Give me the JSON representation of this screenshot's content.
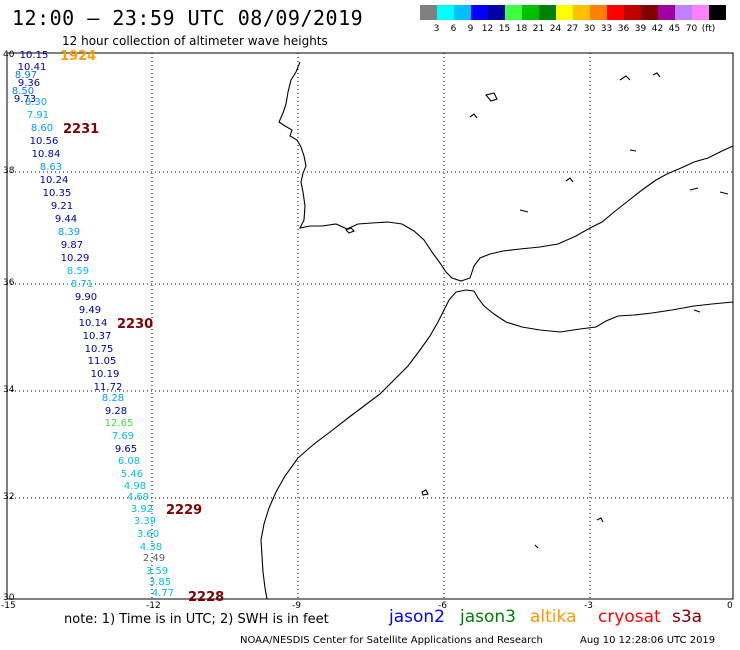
{
  "header": {
    "title": "12:00 – 23:59 UTC 08/09/2019",
    "subtitle": "12 hour collection of altimeter wave heights"
  },
  "scale": {
    "colors": [
      "#808080",
      "#00ffff",
      "#00c0ff",
      "#0000ff",
      "#0000a0",
      "#40ff40",
      "#00c000",
      "#008000",
      "#ffff00",
      "#ffc000",
      "#ff8000",
      "#ff0000",
      "#c00000",
      "#800000",
      "#a000a0",
      "#c080ff",
      "#ff80ff",
      "#000000"
    ],
    "labels": [
      "3",
      "6",
      "9",
      "12",
      "15",
      "18",
      "21",
      "24",
      "27",
      "30",
      "33",
      "36",
      "39",
      "42",
      "45",
      "70",
      "(ft)"
    ]
  },
  "axes": {
    "lat_labels": [
      "40",
      "38",
      "36",
      "34",
      "32",
      "30"
    ],
    "lon_labels": [
      "-15",
      "-12",
      "-9",
      "-6",
      "-3",
      "0"
    ]
  },
  "observations": [
    {
      "v": "10.15",
      "c": "#0000a0"
    },
    {
      "v": "10.41",
      "c": "#0000a0"
    },
    {
      "v": "8.97",
      "c": "#0080ff"
    },
    {
      "v": "9.36",
      "c": "#0000a0"
    },
    {
      "v": "8.50",
      "c": "#0080ff"
    },
    {
      "v": "9.73",
      "c": "#0000a0"
    },
    {
      "v": "8.30",
      "c": "#00a0ff"
    },
    {
      "v": "7.91",
      "c": "#00b0ff"
    },
    {
      "v": "8.60",
      "c": "#00a0ff"
    },
    {
      "v": "10.56",
      "c": "#0000a0"
    },
    {
      "v": "10.84",
      "c": "#0000a0"
    },
    {
      "v": "8.63",
      "c": "#00a0ff"
    },
    {
      "v": "10.24",
      "c": "#0000a0"
    },
    {
      "v": "10.35",
      "c": "#0000a0"
    },
    {
      "v": "9.21",
      "c": "#0000a0"
    },
    {
      "v": "9.44",
      "c": "#0000a0"
    },
    {
      "v": "8.39",
      "c": "#00a0ff"
    },
    {
      "v": "9.87",
      "c": "#0000a0"
    },
    {
      "v": "10.29",
      "c": "#0000a0"
    },
    {
      "v": "8.59",
      "c": "#00c0ff"
    },
    {
      "v": "8.71",
      "c": "#00c0ff"
    },
    {
      "v": "9.90",
      "c": "#0000a0"
    },
    {
      "v": "9.49",
      "c": "#0000a0"
    },
    {
      "v": "10.14",
      "c": "#0000a0"
    },
    {
      "v": "10.37",
      "c": "#0000a0"
    },
    {
      "v": "10.75",
      "c": "#0000a0"
    },
    {
      "v": "11.05",
      "c": "#0000a0"
    },
    {
      "v": "10.19",
      "c": "#0000a0"
    },
    {
      "v": "11.72",
      "c": "#0000a0"
    },
    {
      "v": "8.28",
      "c": "#00a0ff"
    },
    {
      "v": "9.28",
      "c": "#0000a0"
    },
    {
      "v": "12.65",
      "c": "#40e040"
    },
    {
      "v": "7.69",
      "c": "#00c0e0"
    },
    {
      "v": "9.65",
      "c": "#0000a0"
    },
    {
      "v": "6.08",
      "c": "#00c0e0"
    },
    {
      "v": "5.46",
      "c": "#00c0e0"
    },
    {
      "v": "4.98",
      "c": "#00c0e0"
    },
    {
      "v": "4.69",
      "c": "#00c0e0"
    },
    {
      "v": "3.92",
      "c": "#00c0e0"
    },
    {
      "v": "3.39",
      "c": "#00c0e0"
    },
    {
      "v": "3.60",
      "c": "#00c0e0"
    },
    {
      "v": "4.38",
      "c": "#00c0e0"
    },
    {
      "v": "2.49",
      "c": "#606060"
    },
    {
      "v": "3.59",
      "c": "#00c0e0"
    },
    {
      "v": "3.85",
      "c": "#00c0e0"
    },
    {
      "v": "4.77",
      "c": "#00c0e0"
    }
  ],
  "time_labels": [
    {
      "t": "1924",
      "c": "#ff9900"
    },
    {
      "t": "2231",
      "c": "#800000"
    },
    {
      "t": "2230",
      "c": "#800000"
    },
    {
      "t": "2229",
      "c": "#800000"
    },
    {
      "t": "2228",
      "c": "#800000"
    }
  ],
  "note": "note: 1) Time is in UTC; 2) SWH is in feet",
  "legend": [
    {
      "name": "jason2",
      "c": "#0000ff"
    },
    {
      "name": "jason3",
      "c": "#008000"
    },
    {
      "name": "altika",
      "c": "#ff9900"
    },
    {
      "name": "cryosat",
      "c": "#ff0000"
    },
    {
      "name": "s3a",
      "c": "#800000"
    }
  ],
  "credit": "NOAA/NESDIS Center for Satellite Applications and Research",
  "timestamp": "Aug 10 12:28:06 UTC 2019"
}
